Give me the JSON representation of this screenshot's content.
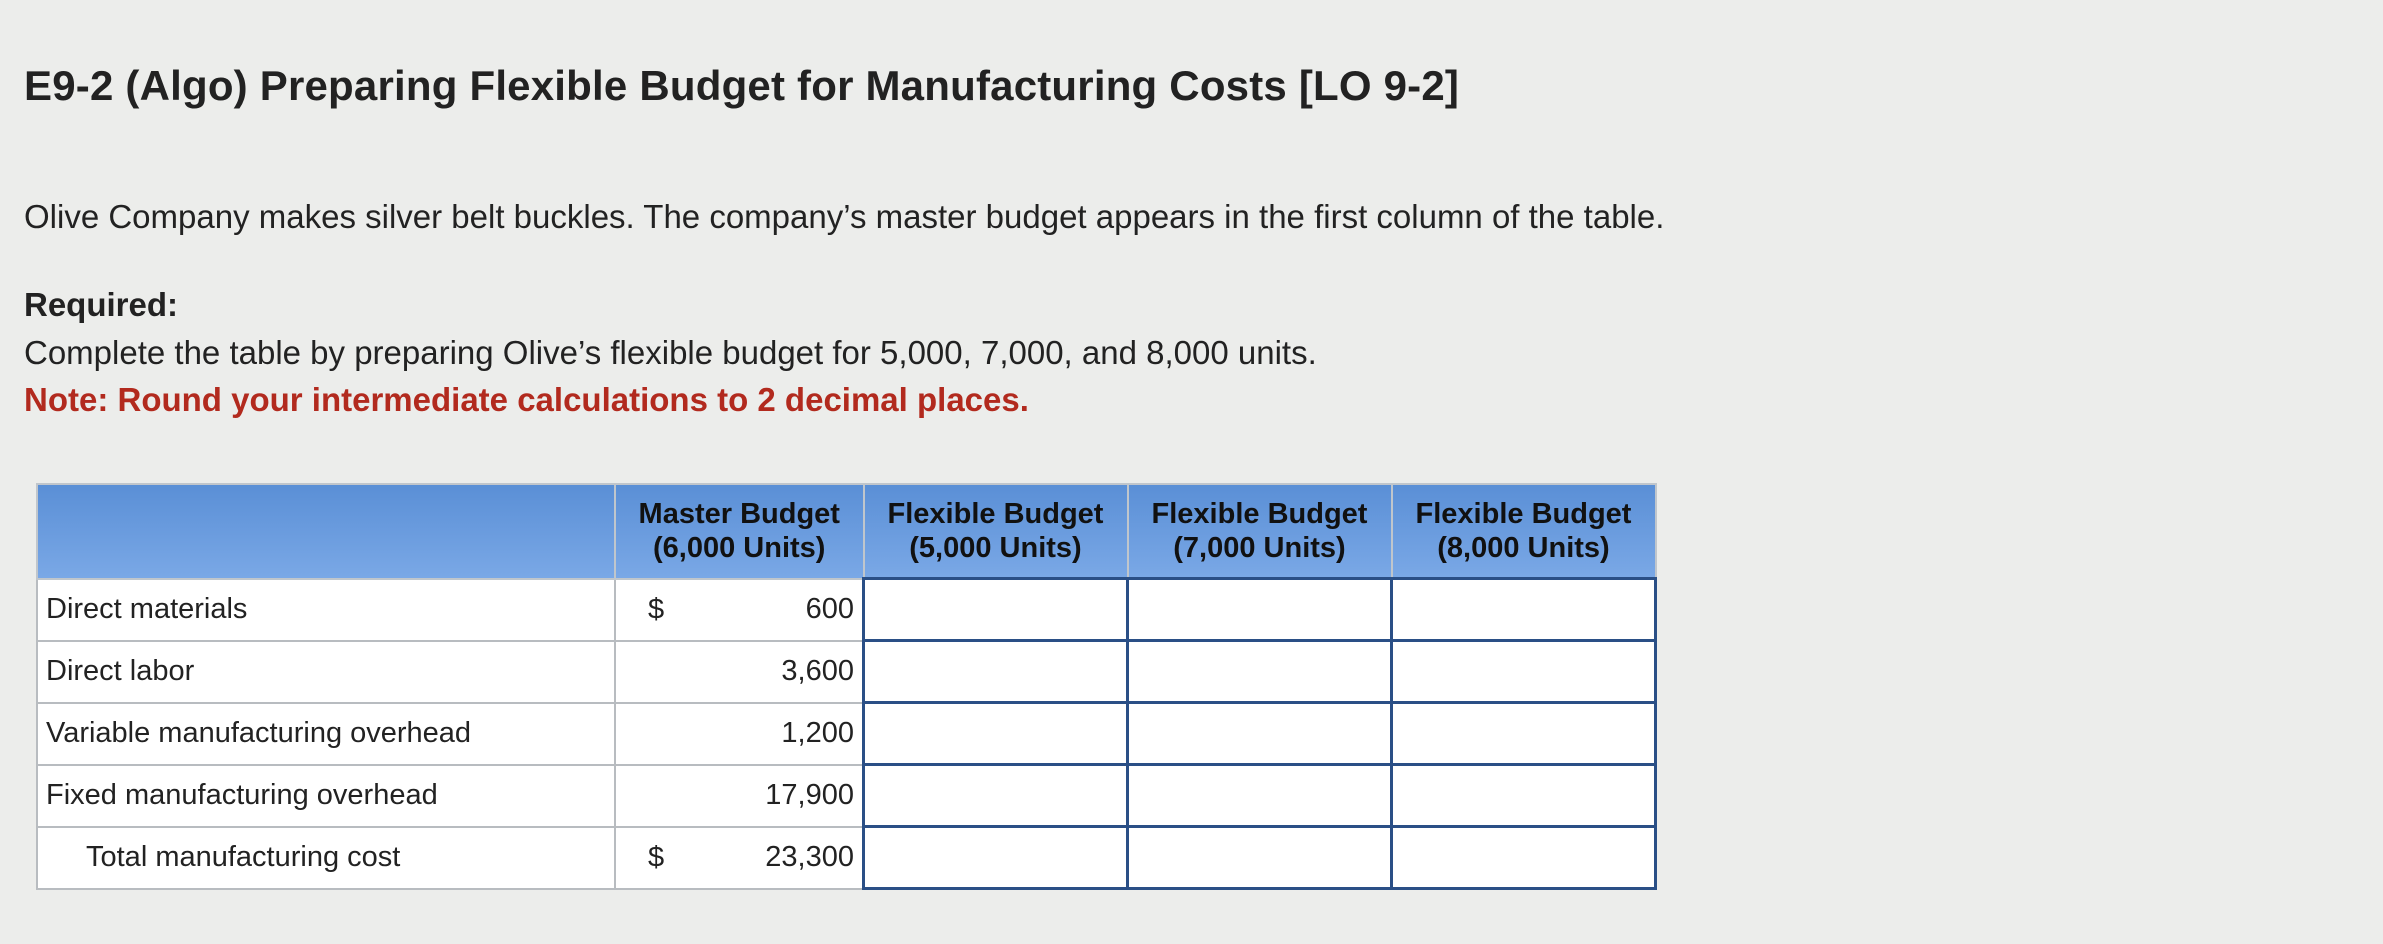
{
  "header": {
    "title": "E9-2 (Algo) Preparing Flexible Budget for Manufacturing Costs [LO 9-2]"
  },
  "body": {
    "intro": "Olive Company makes silver belt buckles. The company’s master budget appears in the first column of the table.",
    "required_label": "Required:",
    "required_text": "Complete the table by preparing Olive’s flexible budget for 5,000, 7,000, and 8,000 units.",
    "note": "Note: Round your intermediate calculations to 2 decimal places."
  },
  "table": {
    "columns": [
      {
        "line1": "Master Budget",
        "line2": "(6,000 Units)"
      },
      {
        "line1": "Flexible Budget",
        "line2": "(5,000 Units)"
      },
      {
        "line1": "Flexible Budget",
        "line2": "(7,000 Units)"
      },
      {
        "line1": "Flexible Budget",
        "line2": "(8,000 Units)"
      }
    ],
    "rows": [
      {
        "label": "Direct materials",
        "currency": "$",
        "master": "600"
      },
      {
        "label": "Direct labor",
        "master": "3,600"
      },
      {
        "label": "Variable manufacturing overhead",
        "master": "1,200"
      },
      {
        "label": "Fixed manufacturing overhead",
        "master": "17,900"
      },
      {
        "label": "Total manufacturing cost",
        "currency": "$",
        "master": "23,300",
        "total": true
      }
    ]
  }
}
